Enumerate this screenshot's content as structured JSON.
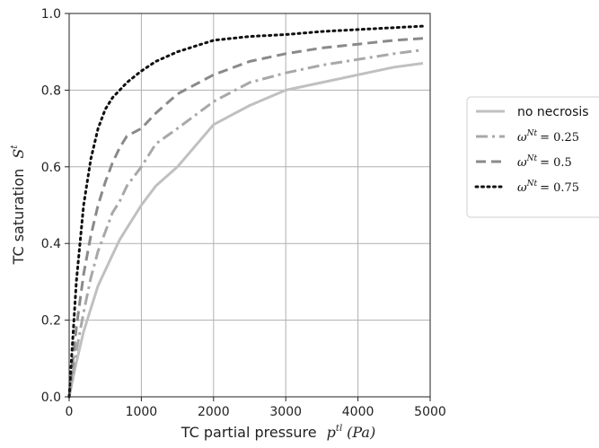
{
  "chart_data": {
    "type": "line",
    "title": "",
    "xlabel": "TC partial pressure",
    "xlabel_math": "p",
    "xlabel_sup": "tl",
    "xlabel_unit": "(Pa)",
    "ylabel": "TC saturation",
    "ylabel_math": "S",
    "ylabel_sup": "t",
    "xlim": [
      0,
      5000
    ],
    "ylim": [
      0,
      1.0
    ],
    "xticks": [
      "0",
      "1000",
      "2000",
      "3000",
      "4000",
      "5000"
    ],
    "yticks": [
      "0.0",
      "0.2",
      "0.4",
      "0.6",
      "0.8",
      "1.0"
    ],
    "grid": true,
    "legend_position": "outside-right",
    "x": [
      0,
      100,
      200,
      300,
      400,
      500,
      600,
      700,
      800,
      1000,
      1200,
      1500,
      2000,
      2500,
      3000,
      3500,
      4000,
      4500,
      4900
    ],
    "series": [
      {
        "name": "no necrosis",
        "style": "solid",
        "color": "#c0c0c0",
        "values": [
          0.0,
          0.09,
          0.17,
          0.23,
          0.29,
          0.33,
          0.37,
          0.41,
          0.44,
          0.5,
          0.55,
          0.6,
          0.71,
          0.76,
          0.8,
          0.82,
          0.84,
          0.86,
          0.87
        ]
      },
      {
        "name": "ω^Nt = 0.25",
        "name_math": "ω",
        "name_sup": "Nt",
        "name_value": "= 0.25",
        "style": "dashdot",
        "color": "#a8a8a8",
        "values": [
          0.0,
          0.12,
          0.22,
          0.31,
          0.38,
          0.43,
          0.48,
          0.51,
          0.55,
          0.6,
          0.66,
          0.7,
          0.77,
          0.82,
          0.845,
          0.865,
          0.88,
          0.895,
          0.905
        ]
      },
      {
        "name": "ω^Nt = 0.5",
        "name_math": "ω",
        "name_sup": "Nt",
        "name_value": "= 0.5",
        "style": "dashed",
        "color": "#8a8a8a",
        "values": [
          0.0,
          0.18,
          0.32,
          0.42,
          0.5,
          0.56,
          0.61,
          0.65,
          0.68,
          0.7,
          0.74,
          0.79,
          0.84,
          0.875,
          0.895,
          0.91,
          0.92,
          0.93,
          0.935
        ]
      },
      {
        "name": "ω^Nt = 0.75",
        "name_math": "ω",
        "name_sup": "Nt",
        "name_value": "= 0.75",
        "style": "dotted",
        "color": "#111111",
        "values": [
          0.0,
          0.3,
          0.5,
          0.62,
          0.7,
          0.75,
          0.78,
          0.8,
          0.82,
          0.85,
          0.875,
          0.9,
          0.93,
          0.94,
          0.945,
          0.953,
          0.958,
          0.963,
          0.967
        ]
      }
    ]
  }
}
